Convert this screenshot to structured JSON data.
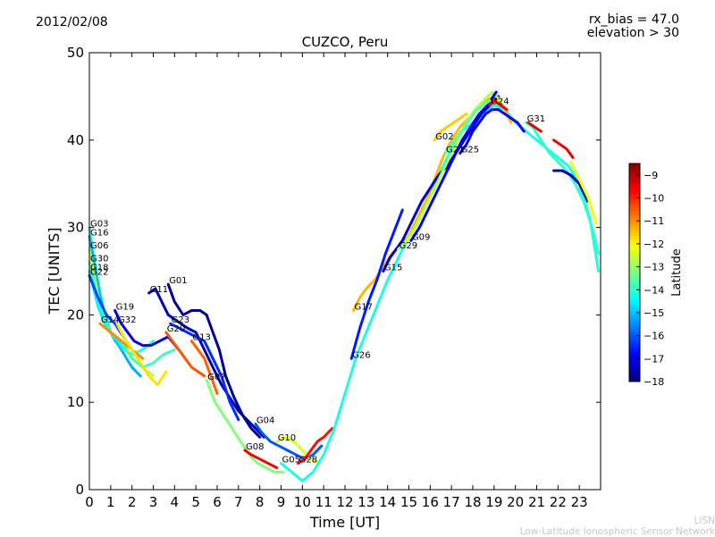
{
  "header": {
    "date": "2012/02/08",
    "rx_bias": "rx_bias = 47.0",
    "elevation": "elevation > 30"
  },
  "credit": {
    "acronym": "LISN",
    "name": "Low-Latitude Ionospheric Sensor Network"
  },
  "chart_data": {
    "type": "line",
    "title": "CUZCO, Peru",
    "xlabel": "Time [UT]",
    "ylabel": "TEC [UNITS]",
    "xlim": [
      0,
      24
    ],
    "ylim": [
      0,
      50
    ],
    "xticks": [
      0,
      1,
      2,
      3,
      4,
      5,
      6,
      7,
      8,
      9,
      10,
      11,
      12,
      13,
      14,
      15,
      16,
      17,
      18,
      19,
      20,
      21,
      22,
      23
    ],
    "yticks": [
      0,
      10,
      20,
      30,
      40,
      50
    ],
    "grid": false,
    "colorbar": {
      "label": "Latitude",
      "range": [
        -18,
        -8.5
      ],
      "ticks": [
        -18,
        -17,
        -16,
        -15,
        -14,
        -13,
        -12,
        -11,
        -10,
        -9
      ],
      "colormap": "jet"
    },
    "series": [
      {
        "name": "G03",
        "lat": -14.0,
        "x": [
          0.0,
          0.4,
          0.8,
          1.2,
          1.6,
          2.0,
          2.5,
          3.0
        ],
        "y": [
          30,
          24,
          19,
          17,
          16,
          15.5,
          16,
          17
        ]
      },
      {
        "name": "G16",
        "lat": -15.2,
        "x": [
          0.0,
          0.5,
          1.0,
          1.5,
          2.0,
          2.4
        ],
        "y": [
          29,
          22,
          18,
          16,
          14,
          13
        ]
      },
      {
        "name": "G06",
        "lat": -12.6,
        "x": [
          0.0,
          0.5,
          1.0,
          1.5,
          2.0,
          2.5,
          3.0
        ],
        "y": [
          27.5,
          21,
          18,
          16.5,
          15,
          14,
          13
        ]
      },
      {
        "name": "G30",
        "lat": -13.8,
        "x": [
          0.0,
          0.5,
          1.0,
          1.5,
          2.0,
          2.5,
          3.0,
          3.5,
          4.0
        ],
        "y": [
          26,
          21,
          18,
          17,
          15,
          14,
          14.5,
          15.5,
          16
        ]
      },
      {
        "name": "G18",
        "lat": -14.5,
        "x": [
          0.0,
          0.4,
          0.8,
          1.2,
          1.6
        ],
        "y": [
          25,
          21,
          18.5,
          17.5,
          16
        ]
      },
      {
        "name": "G22",
        "lat": -16.2,
        "x": [
          0.0,
          0.4,
          0.8,
          1.2,
          1.6,
          2.0
        ],
        "y": [
          24.5,
          22,
          20,
          19,
          17.5,
          16
        ]
      },
      {
        "name": "G14",
        "lat": -11.0,
        "x": [
          0.5,
          1.0,
          1.5,
          2.0,
          2.5
        ],
        "y": [
          19,
          18,
          17,
          16,
          15
        ]
      },
      {
        "name": "G19",
        "lat": -17.0,
        "x": [
          1.2,
          1.5,
          1.8,
          2.1,
          2.5,
          2.9,
          3.3,
          3.7,
          4.2
        ],
        "y": [
          20.5,
          19,
          18,
          17,
          16.5,
          16.5,
          17,
          17.5,
          16
        ]
      },
      {
        "name": "G32",
        "lat": -11.8,
        "x": [
          1.3,
          1.6,
          2.0,
          2.4,
          2.8,
          3.2,
          3.6
        ],
        "y": [
          19,
          17.5,
          16,
          14.5,
          13,
          12,
          13.5
        ]
      },
      {
        "name": "G11",
        "lat": -17.5,
        "x": [
          2.8,
          3.1,
          3.4,
          3.7,
          4.0,
          4.3,
          4.6,
          5.0,
          5.4,
          5.8,
          6.2,
          6.6,
          7.0,
          7.4,
          7.8,
          8.2
        ],
        "y": [
          22.5,
          23,
          21.5,
          20,
          19.5,
          19,
          18.5,
          18,
          16,
          14,
          12,
          10.5,
          9,
          8,
          7,
          6
        ]
      },
      {
        "name": "G01",
        "lat": -17.8,
        "x": [
          3.7,
          4.0,
          4.4,
          4.8,
          5.2,
          5.5,
          5.8,
          6.1,
          6.4,
          6.8,
          7.2,
          7.6,
          8.0
        ],
        "y": [
          23.5,
          21.5,
          20,
          20.5,
          20.5,
          20,
          18,
          16,
          13,
          10.5,
          8.5,
          7,
          6
        ]
      },
      {
        "name": "G20",
        "lat": -10.5,
        "x": [
          3.6,
          3.9,
          4.2,
          4.5,
          4.8,
          5.1,
          5.4
        ],
        "y": [
          18,
          17,
          16,
          15,
          14,
          13.5,
          13
        ]
      },
      {
        "name": "G23",
        "lat": -16.4,
        "x": [
          3.8,
          4.2,
          4.6,
          5.0,
          5.4,
          5.8,
          6.2,
          6.6,
          7.0
        ],
        "y": [
          19,
          18.5,
          18,
          17.5,
          17,
          15,
          13,
          10,
          8
        ]
      },
      {
        "name": "G13",
        "lat": -10.6,
        "x": [
          4.8,
          5.1,
          5.4,
          5.7,
          6.0
        ],
        "y": [
          17,
          16,
          15,
          13,
          11
        ]
      },
      {
        "name": "G07",
        "lat": -13.2,
        "x": [
          5.5,
          5.9,
          6.3,
          6.7,
          7.1,
          7.5,
          7.9,
          8.3,
          8.7,
          9.1
        ],
        "y": [
          12.5,
          10,
          8.5,
          7,
          5.5,
          4,
          3,
          2.5,
          2,
          2
        ]
      },
      {
        "name": "G04",
        "lat": -16.0,
        "x": [
          7.8,
          8.1,
          8.5,
          8.9,
          9.3,
          9.7,
          10.1,
          10.5,
          10.9
        ],
        "y": [
          7.5,
          6.5,
          5.5,
          5,
          4.5,
          4,
          3.5,
          4,
          5
        ]
      },
      {
        "name": "G10",
        "lat": -12.4,
        "x": [
          8.8,
          9.2,
          9.6,
          10.0,
          10.4,
          10.8
        ],
        "y": [
          5.5,
          6,
          5.5,
          4.5,
          3.5,
          3
        ]
      },
      {
        "name": "G08",
        "lat": -9.6,
        "x": [
          7.3,
          7.6,
          8.0,
          8.4,
          8.8
        ],
        "y": [
          4.5,
          4,
          3.5,
          3,
          2.5
        ]
      },
      {
        "name": "G28",
        "lat": -9.8,
        "x": [
          9.8,
          10.1,
          10.4,
          10.7,
          11.0,
          11.4
        ],
        "y": [
          3,
          3.5,
          4.5,
          5.5,
          6,
          7
        ]
      },
      {
        "name": "G05",
        "lat": -14.2,
        "x": [
          9.0,
          9.5,
          10.0,
          10.5,
          11.0,
          11.5,
          12.0,
          12.5,
          13.0,
          13.5,
          14.0,
          14.5,
          15.0,
          15.5,
          16.0,
          16.5,
          17.0,
          17.5,
          18.0,
          18.5,
          19.0,
          19.5,
          20.0,
          20.5,
          21.0,
          21.5,
          22.0,
          22.5,
          23.0,
          23.5,
          23.9
        ],
        "y": [
          3,
          2,
          1,
          2,
          4,
          7,
          11,
          15,
          18,
          21,
          24,
          26.5,
          29,
          31.5,
          34,
          36.5,
          39,
          41,
          42,
          43,
          44,
          43.5,
          42,
          41,
          40,
          39,
          38,
          37,
          35,
          31,
          25
        ]
      },
      {
        "name": "G17",
        "lat": -11.4,
        "x": [
          12.4,
          12.7,
          13.0,
          13.4,
          13.8,
          14.2,
          14.6,
          15.0,
          15.4,
          15.8,
          16.2,
          16.6,
          17.0,
          17.4,
          17.8,
          18.2,
          18.6,
          19.0,
          19.4,
          19.8
        ],
        "y": [
          20.5,
          22,
          23,
          24,
          25.5,
          27,
          28,
          29,
          31,
          33,
          35.5,
          38,
          40,
          41.5,
          42.5,
          43.5,
          44.5,
          45,
          44,
          42
        ]
      },
      {
        "name": "G26",
        "lat": -16.6,
        "x": [
          12.3,
          12.7,
          13.1,
          13.5,
          13.9,
          14.3,
          14.7
        ],
        "y": [
          15,
          18.5,
          21.5,
          24,
          27,
          29.5,
          32
        ]
      },
      {
        "name": "G15",
        "lat": -17.2,
        "x": [
          13.8,
          14.1,
          14.4,
          14.7,
          15.0,
          15.3,
          15.6,
          16.0,
          16.4,
          16.8,
          17.2,
          17.6,
          18.0,
          18.4,
          18.8,
          19.2
        ],
        "y": [
          25,
          26.5,
          27.5,
          28.5,
          30,
          31.5,
          33,
          34.5,
          36,
          37,
          38.5,
          40,
          41.5,
          43,
          44,
          45
        ]
      },
      {
        "name": "G29",
        "lat": -12.8,
        "x": [
          14.5,
          14.9,
          15.3,
          15.7,
          16.1,
          16.5,
          16.9,
          17.3,
          17.7,
          18.1,
          18.5,
          18.9,
          19.3
        ],
        "y": [
          27.5,
          28.5,
          30,
          32,
          34,
          36,
          38,
          40,
          42,
          43.5,
          44.5,
          45.5,
          44.5
        ]
      },
      {
        "name": "G09",
        "lat": -16.9,
        "x": [
          15.1,
          15.5,
          15.9,
          16.3,
          16.7,
          17.1,
          17.5,
          17.9,
          18.3,
          18.7,
          19.1
        ],
        "y": [
          28.5,
          30,
          32,
          34,
          36,
          38,
          40,
          41.5,
          43,
          44,
          45.5
        ]
      },
      {
        "name": "G02",
        "lat": -11.6,
        "x": [
          16.2,
          16.5,
          16.8,
          17.1,
          17.4,
          17.7
        ],
        "y": [
          40,
          41,
          41.5,
          42,
          42.5,
          43
        ]
      },
      {
        "name": "G21",
        "lat": -13.6,
        "x": [
          16.7,
          17.0,
          17.3,
          17.6,
          17.9,
          18.2,
          18.5,
          18.8
        ],
        "y": [
          38.5,
          39.5,
          40.5,
          41.5,
          42.5,
          43.5,
          44,
          44.5
        ]
      },
      {
        "name": "G25",
        "lat": -16.8,
        "x": [
          17.4,
          17.7,
          18.0,
          18.3,
          18.6,
          18.9,
          19.2,
          19.5,
          19.8,
          20.1,
          20.4
        ],
        "y": [
          38.5,
          39.5,
          41,
          42,
          43,
          43.5,
          43.5,
          43,
          42.5,
          42,
          41
        ]
      },
      {
        "name": "G24",
        "lat": -9.7,
        "x": [
          18.8,
          19.0,
          19.3,
          19.6
        ],
        "y": [
          44,
          44.5,
          44,
          43.5
        ]
      },
      {
        "name": "G31",
        "lat": -14.0,
        "x": [
          20.5,
          20.8,
          21.2,
          21.6,
          22.0,
          22.4,
          22.8,
          23.2,
          23.6,
          23.9
        ],
        "y": [
          42,
          41.5,
          40,
          38.5,
          37.5,
          36.5,
          35,
          33,
          30,
          27
        ]
      },
      {
        "name": "",
        "lat": -9.4,
        "x": [
          20.6,
          20.9,
          21.2
        ],
        "y": [
          42,
          41.5,
          41
        ]
      },
      {
        "name": "",
        "lat": -9.5,
        "x": [
          21.8,
          22.1,
          22.4,
          22.7
        ],
        "y": [
          40,
          39.5,
          39,
          38
        ]
      },
      {
        "name": "",
        "lat": -17.6,
        "x": [
          21.8,
          22.2,
          22.6,
          23.0,
          23.4
        ],
        "y": [
          36.5,
          36.5,
          36,
          35,
          33
        ]
      },
      {
        "name": "",
        "lat": -12.2,
        "x": [
          22.6,
          23.0,
          23.4,
          23.8
        ],
        "y": [
          37.5,
          35.5,
          33.5,
          30.5
        ]
      }
    ]
  }
}
